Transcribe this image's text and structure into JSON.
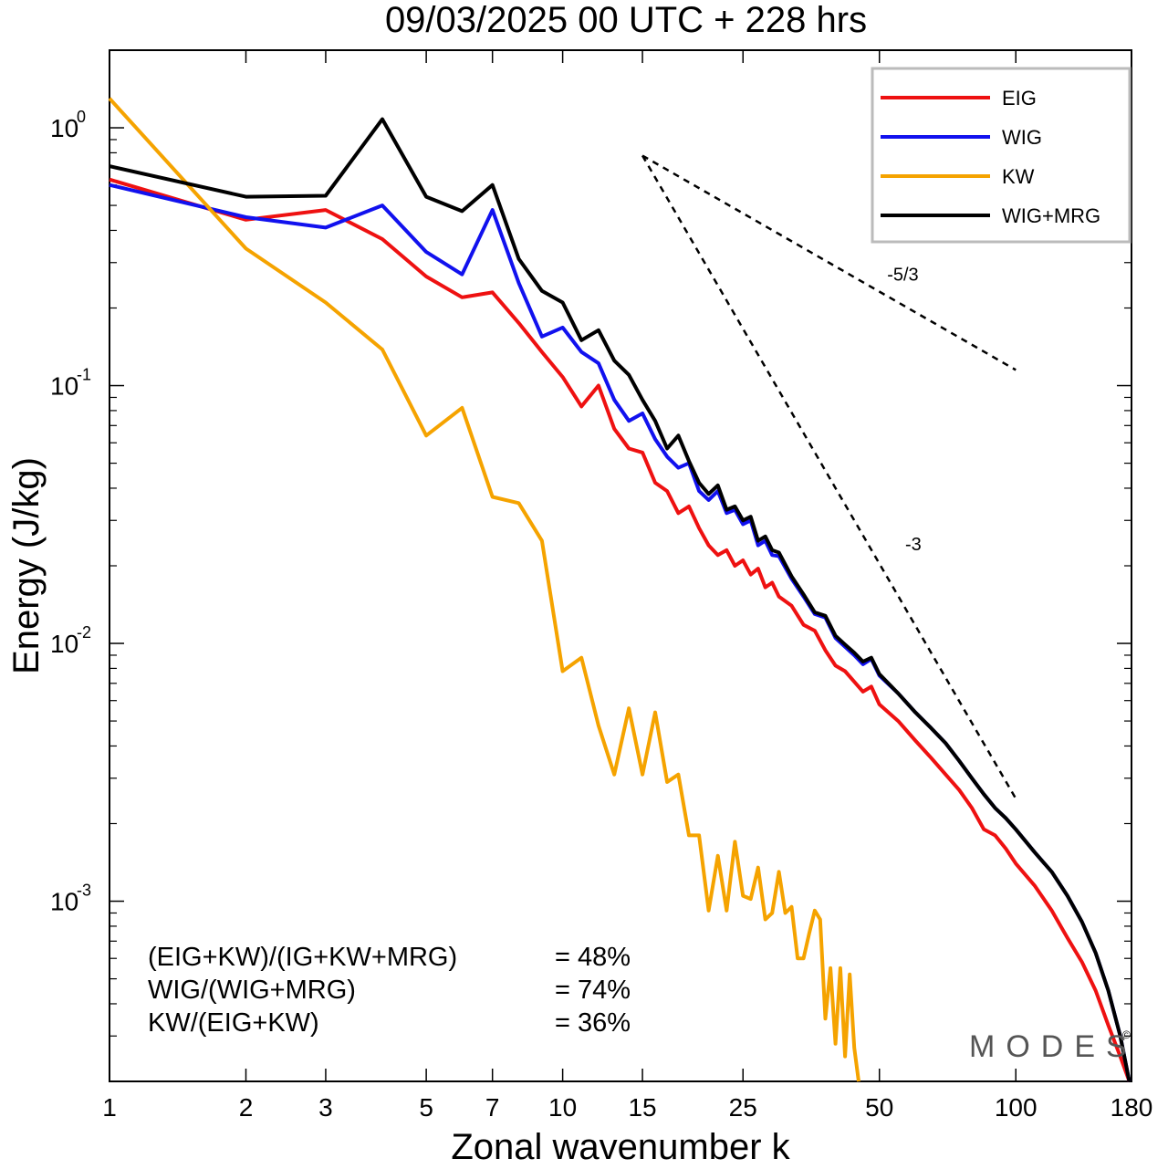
{
  "chart_data": {
    "type": "line",
    "title": "09/03/2025  00 UTC  + 228 hrs",
    "xlabel": "Zonal wavenumber k",
    "ylabel": "Energy (J/kg)",
    "x_scale": "log",
    "y_scale": "log",
    "xlim": [
      1,
      180
    ],
    "ylim": [
      0.0002,
      2.0
    ],
    "x_ticks": [
      {
        "value": 1,
        "label": "1"
      },
      {
        "value": 2,
        "label": "2"
      },
      {
        "value": 3,
        "label": "3"
      },
      {
        "value": 5,
        "label": "5"
      },
      {
        "value": 7,
        "label": "7"
      },
      {
        "value": 10,
        "label": "10"
      },
      {
        "value": 15,
        "label": "15"
      },
      {
        "value": 25,
        "label": "25"
      },
      {
        "value": 50,
        "label": "50"
      },
      {
        "value": 100,
        "label": "100"
      },
      {
        "value": 180,
        "label": "180"
      }
    ],
    "y_ticks": [
      {
        "value": 1,
        "base": "10",
        "exp": "0"
      },
      {
        "value": 0.1,
        "base": "10",
        "exp": "-1"
      },
      {
        "value": 0.01,
        "base": "10",
        "exp": "-2"
      },
      {
        "value": 0.001,
        "base": "10",
        "exp": "-3"
      }
    ],
    "grid": false,
    "legend_position": "top-right",
    "series": [
      {
        "name": "EIG",
        "color": "#ee1111",
        "points": [
          [
            1,
            0.63
          ],
          [
            2,
            0.44
          ],
          [
            3,
            0.48
          ],
          [
            4,
            0.37
          ],
          [
            5,
            0.265
          ],
          [
            6,
            0.22
          ],
          [
            7,
            0.23
          ],
          [
            8,
            0.175
          ],
          [
            9,
            0.135
          ],
          [
            10,
            0.108
          ],
          [
            11,
            0.083
          ],
          [
            12,
            0.1
          ],
          [
            13,
            0.068
          ],
          [
            14,
            0.057
          ],
          [
            15,
            0.055
          ],
          [
            16,
            0.042
          ],
          [
            17,
            0.039
          ],
          [
            18,
            0.032
          ],
          [
            19,
            0.034
          ],
          [
            20,
            0.028
          ],
          [
            21,
            0.024
          ],
          [
            22,
            0.022
          ],
          [
            23,
            0.023
          ],
          [
            24,
            0.02
          ],
          [
            25,
            0.021
          ],
          [
            26,
            0.0185
          ],
          [
            27,
            0.0195
          ],
          [
            28,
            0.0165
          ],
          [
            29,
            0.0172
          ],
          [
            30,
            0.0152
          ],
          [
            32,
            0.014
          ],
          [
            34,
            0.0118
          ],
          [
            36,
            0.0112
          ],
          [
            38,
            0.0094
          ],
          [
            40,
            0.0082
          ],
          [
            42,
            0.0078
          ],
          [
            44,
            0.0071
          ],
          [
            46,
            0.0065
          ],
          [
            48,
            0.0068
          ],
          [
            50,
            0.0058
          ],
          [
            55,
            0.005
          ],
          [
            60,
            0.0042
          ],
          [
            65,
            0.0036
          ],
          [
            70,
            0.0031
          ],
          [
            75,
            0.0027
          ],
          [
            80,
            0.0023
          ],
          [
            85,
            0.0019
          ],
          [
            90,
            0.0018
          ],
          [
            95,
            0.0016
          ],
          [
            100,
            0.0014
          ],
          [
            110,
            0.00115
          ],
          [
            120,
            0.00092
          ],
          [
            130,
            0.00072
          ],
          [
            140,
            0.00058
          ],
          [
            150,
            0.00045
          ],
          [
            160,
            0.00033
          ],
          [
            170,
            0.00025
          ],
          [
            178,
            0.0002
          ]
        ]
      },
      {
        "name": "WIG",
        "color": "#1111ee",
        "points": [
          [
            1,
            0.6
          ],
          [
            2,
            0.45
          ],
          [
            3,
            0.41
          ],
          [
            4,
            0.5
          ],
          [
            5,
            0.33
          ],
          [
            6,
            0.27
          ],
          [
            7,
            0.48
          ],
          [
            8,
            0.25
          ],
          [
            9,
            0.155
          ],
          [
            10,
            0.168
          ],
          [
            11,
            0.135
          ],
          [
            12,
            0.122
          ],
          [
            13,
            0.088
          ],
          [
            14,
            0.073
          ],
          [
            15,
            0.078
          ],
          [
            16,
            0.062
          ],
          [
            17,
            0.053
          ],
          [
            18,
            0.048
          ],
          [
            19,
            0.05
          ],
          [
            20,
            0.039
          ],
          [
            21,
            0.036
          ],
          [
            22,
            0.039
          ],
          [
            23,
            0.032
          ],
          [
            24,
            0.033
          ],
          [
            25,
            0.029
          ],
          [
            26,
            0.03
          ],
          [
            27,
            0.024
          ],
          [
            28,
            0.025
          ],
          [
            29,
            0.022
          ],
          [
            30,
            0.0218
          ],
          [
            32,
            0.0178
          ],
          [
            34,
            0.0152
          ],
          [
            36,
            0.013
          ],
          [
            38,
            0.0126
          ],
          [
            40,
            0.0105
          ],
          [
            42,
            0.0097
          ],
          [
            44,
            0.009
          ],
          [
            46,
            0.0083
          ],
          [
            48,
            0.0087
          ],
          [
            50,
            0.0075
          ],
          [
            55,
            0.0064
          ],
          [
            60,
            0.0054
          ],
          [
            65,
            0.0047
          ],
          [
            70,
            0.0041
          ],
          [
            75,
            0.0035
          ],
          [
            80,
            0.003
          ],
          [
            85,
            0.0026
          ],
          [
            90,
            0.0023
          ],
          [
            95,
            0.0021
          ],
          [
            100,
            0.0019
          ],
          [
            110,
            0.00155
          ],
          [
            120,
            0.0013
          ],
          [
            130,
            0.00105
          ],
          [
            140,
            0.00083
          ],
          [
            150,
            0.00063
          ],
          [
            160,
            0.00045
          ],
          [
            170,
            0.0003
          ],
          [
            178,
            0.0002
          ]
        ]
      },
      {
        "name": "KW",
        "color": "#f5a300",
        "points": [
          [
            1,
            1.3
          ],
          [
            2,
            0.34
          ],
          [
            3,
            0.21
          ],
          [
            4,
            0.138
          ],
          [
            5,
            0.064
          ],
          [
            6,
            0.082
          ],
          [
            7,
            0.037
          ],
          [
            8,
            0.035
          ],
          [
            9,
            0.025
          ],
          [
            10,
            0.0078
          ],
          [
            11,
            0.0088
          ],
          [
            12,
            0.0048
          ],
          [
            13,
            0.0031
          ],
          [
            14,
            0.0056
          ],
          [
            15,
            0.0031
          ],
          [
            16,
            0.0054
          ],
          [
            17,
            0.0029
          ],
          [
            18,
            0.0031
          ],
          [
            19,
            0.0018
          ],
          [
            20,
            0.0018
          ],
          [
            21,
            0.00092
          ],
          [
            22,
            0.0015
          ],
          [
            23,
            0.00092
          ],
          [
            24,
            0.0017
          ],
          [
            25,
            0.00105
          ],
          [
            26,
            0.00102
          ],
          [
            27,
            0.00135
          ],
          [
            28,
            0.00085
          ],
          [
            29,
            0.0009
          ],
          [
            30,
            0.0013
          ],
          [
            31,
            0.0009
          ],
          [
            32,
            0.00095
          ],
          [
            33,
            0.0006
          ],
          [
            34,
            0.0006
          ],
          [
            35,
            0.00075
          ],
          [
            36,
            0.00092
          ],
          [
            37,
            0.00085
          ],
          [
            38,
            0.00035
          ],
          [
            39,
            0.00055
          ],
          [
            40,
            0.00028
          ],
          [
            41,
            0.00055
          ],
          [
            42,
            0.00025
          ],
          [
            43,
            0.00052
          ],
          [
            44,
            0.00027
          ],
          [
            45,
            0.0002
          ]
        ]
      },
      {
        "name": "WIG+MRG",
        "color": "#000000",
        "points": [
          [
            1,
            0.71
          ],
          [
            2,
            0.54
          ],
          [
            3,
            0.545
          ],
          [
            4,
            1.08
          ],
          [
            5,
            0.54
          ],
          [
            6,
            0.475
          ],
          [
            7,
            0.6
          ],
          [
            8,
            0.31
          ],
          [
            9,
            0.233
          ],
          [
            10,
            0.21
          ],
          [
            11,
            0.15
          ],
          [
            12,
            0.164
          ],
          [
            13,
            0.125
          ],
          [
            14,
            0.11
          ],
          [
            15,
            0.088
          ],
          [
            16,
            0.073
          ],
          [
            17,
            0.057
          ],
          [
            18,
            0.064
          ],
          [
            19,
            0.051
          ],
          [
            20,
            0.042
          ],
          [
            21,
            0.038
          ],
          [
            22,
            0.041
          ],
          [
            23,
            0.033
          ],
          [
            24,
            0.034
          ],
          [
            25,
            0.03
          ],
          [
            26,
            0.031
          ],
          [
            27,
            0.025
          ],
          [
            28,
            0.026
          ],
          [
            29,
            0.023
          ],
          [
            30,
            0.0225
          ],
          [
            32,
            0.0182
          ],
          [
            34,
            0.0155
          ],
          [
            36,
            0.0132
          ],
          [
            38,
            0.0128
          ],
          [
            40,
            0.0107
          ],
          [
            42,
            0.0099
          ],
          [
            44,
            0.0092
          ],
          [
            46,
            0.0085
          ],
          [
            48,
            0.0088
          ],
          [
            50,
            0.0076
          ],
          [
            55,
            0.0064
          ],
          [
            60,
            0.0054
          ],
          [
            65,
            0.0047
          ],
          [
            70,
            0.0041
          ],
          [
            75,
            0.0035
          ],
          [
            80,
            0.003
          ],
          [
            85,
            0.0026
          ],
          [
            90,
            0.0023
          ],
          [
            95,
            0.0021
          ],
          [
            100,
            0.0019
          ],
          [
            110,
            0.00155
          ],
          [
            120,
            0.0013
          ],
          [
            130,
            0.00105
          ],
          [
            140,
            0.00083
          ],
          [
            150,
            0.00063
          ],
          [
            160,
            0.00045
          ],
          [
            170,
            0.0003
          ],
          [
            178,
            0.0002
          ]
        ]
      }
    ],
    "reference_lines": [
      {
        "label": "-5/3",
        "points": [
          [
            15,
            0.78
          ],
          [
            100,
            0.115
          ]
        ],
        "label_at": [
          52,
          0.255
        ]
      },
      {
        "label": "-3",
        "points": [
          [
            15,
            0.78
          ],
          [
            100,
            0.0025
          ]
        ],
        "label_at": [
          57,
          0.023
        ]
      }
    ],
    "annotations": [
      {
        "text": "(EIG+KW)/(IG+KW+MRG)",
        "value": "= 48%"
      },
      {
        "text": "WIG/(WIG+MRG)",
        "value": "= 74%"
      },
      {
        "text": "KW/(EIG+KW)",
        "value": "= 36%"
      }
    ],
    "watermark": "MODES",
    "watermark_mark": "©"
  }
}
